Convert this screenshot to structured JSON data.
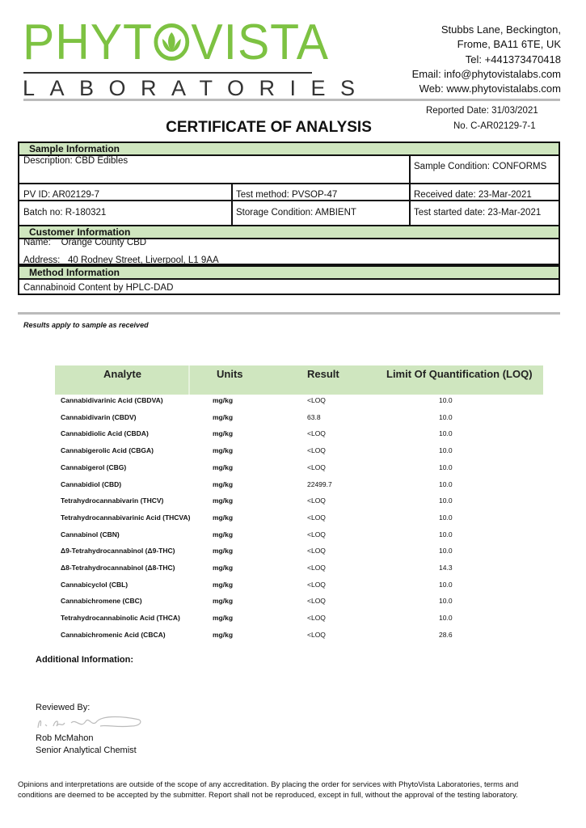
{
  "header": {
    "logo_text": "PHYTOVISTA",
    "logo_subtext": "LABORATORIES",
    "brand_color": "#7dc242",
    "address_lines": [
      "Stubbs Lane, Beckington,",
      "Frome, BA11 6TE, UK",
      "Tel: +441373470418",
      "Email: info@phytovistalabs.com",
      "Web: www.phytovistalabs.com"
    ]
  },
  "report": {
    "title": "CERTIFICATE OF ANALYSIS",
    "reported_date": "Reported Date: 31/03/2021",
    "number": "No. C-AR02129-7-1"
  },
  "sample_info": {
    "heading": "Sample Information",
    "description": "Description: CBD Edibles",
    "condition": "Sample Condition: CONFORMS",
    "pv_id": "PV ID: AR02129-7",
    "test_method": "Test method: PVSOP-47",
    "received": "Received date: 23-Mar-2021",
    "batch": "Batch no: R-180321",
    "storage": "Storage Condition: AMBIENT",
    "test_started": "Test started date: 23-Mar-2021"
  },
  "customer_info": {
    "heading": "Customer Information",
    "name": "Name:    Orange County CBD",
    "address": "Address:   40 Rodney Street, Liverpool, L1 9AA"
  },
  "method_info": {
    "heading": "Method Information",
    "method": "Cannabinoid Content by HPLC-DAD"
  },
  "results_note": "Results apply to sample as received",
  "results": {
    "columns": [
      "Analyte",
      "Units",
      "Result",
      "Limit Of Quantification (LOQ)"
    ],
    "rows": [
      [
        "Cannabidivarinic Acid (CBDVA)",
        "mg/kg",
        "<LOQ",
        "10.0"
      ],
      [
        "Cannabidivarin (CBDV)",
        "mg/kg",
        "63.8",
        "10.0"
      ],
      [
        "Cannabidiolic Acid (CBDA)",
        "mg/kg",
        "<LOQ",
        "10.0"
      ],
      [
        "Cannabigerolic Acid (CBGA)",
        "mg/kg",
        "<LOQ",
        "10.0"
      ],
      [
        "Cannabigerol (CBG)",
        "mg/kg",
        "<LOQ",
        "10.0"
      ],
      [
        "Cannabidiol (CBD)",
        "mg/kg",
        "22499.7",
        "10.0"
      ],
      [
        "Tetrahydrocannabivarin (THCV)",
        "mg/kg",
        "<LOQ",
        "10.0"
      ],
      [
        "Tetrahydrocannabivarinic Acid (THCVA)",
        "mg/kg",
        "<LOQ",
        "10.0"
      ],
      [
        "Cannabinol (CBN)",
        "mg/kg",
        "<LOQ",
        "10.0"
      ],
      [
        "Δ9-Tetrahydrocannabinol (Δ9-THC)",
        "mg/kg",
        "<LOQ",
        "10.0"
      ],
      [
        "Δ8-Tetrahydrocannabinol (Δ8-THC)",
        "mg/kg",
        "<LOQ",
        "14.3"
      ],
      [
        "Cannabicyclol (CBL)",
        "mg/kg",
        "<LOQ",
        "10.0"
      ],
      [
        "Cannabichromene (CBC)",
        "mg/kg",
        "<LOQ",
        "10.0"
      ],
      [
        "Tetrahydrocannabinolic Acid (THCA)",
        "mg/kg",
        "<LOQ",
        "10.0"
      ],
      [
        "Cannabichromenic Acid (CBCA)",
        "mg/kg",
        "<LOQ",
        "28.6"
      ]
    ]
  },
  "footer": {
    "additional_info": "Additional Information:",
    "reviewed_by": "Reviewed By:",
    "reviewer_name": "Rob McMahon",
    "reviewer_title": "Senior Analytical Chemist",
    "signature_text": "R. McMahon",
    "disclaimer": "Opinions and interpretations are outside of the scope of any accreditation. By placing the order for services with PhytoVista Laboratories, terms and conditions are deemed to be accepted by the submitter. Report shall not be reproduced, except in full, without the approval of the testing laboratory."
  }
}
